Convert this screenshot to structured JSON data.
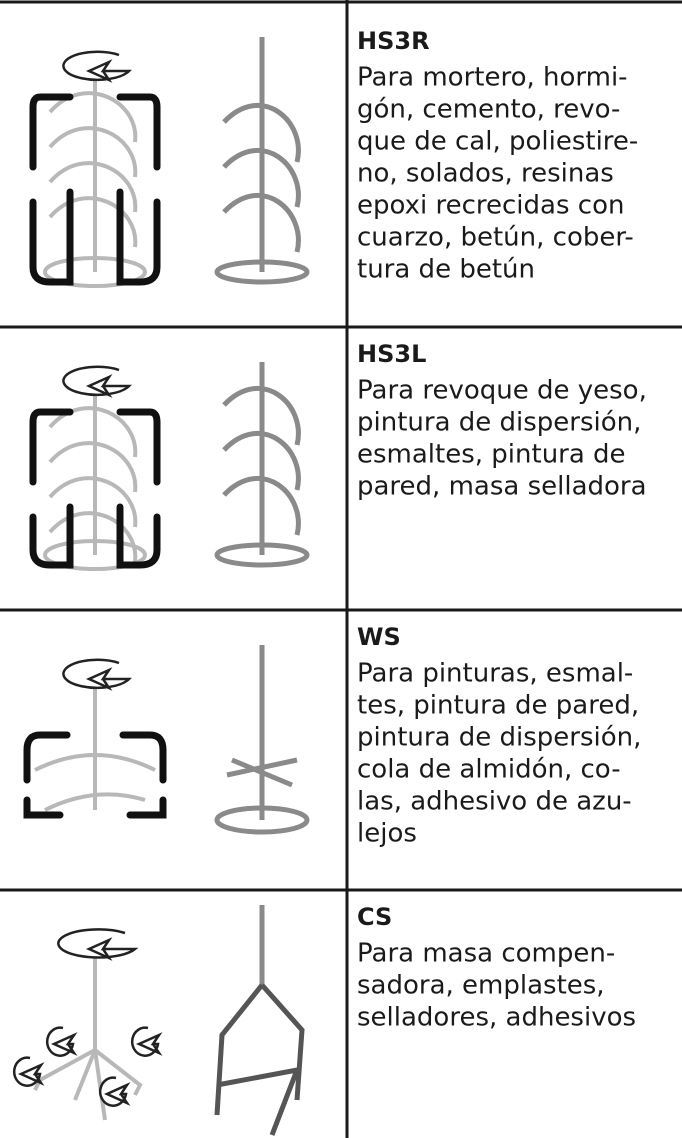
{
  "table": {
    "rows": [
      {
        "title": "HS3R",
        "lines": [
          "Para mortero, hormi-",
          "gón, cemento, revo-",
          "que de cal, poliestire-",
          "no, solados, resinas",
          "epoxi recrecidas con",
          "cuarzo, betún, cober-",
          "tura de betún"
        ]
      },
      {
        "title": "HS3L",
        "lines": [
          "Para revoque de yeso,",
          "pintura de dispersión,",
          "esmaltes, pintura de",
          "pared, masa selladora"
        ]
      },
      {
        "title": "WS",
        "lines": [
          "Para pinturas, esmal-",
          "tes, pintura de pared,",
          "pintura de dispersión,",
          "cola de almidón, co-",
          "las, adhesivo de azu-",
          "lejos"
        ]
      },
      {
        "title": "CS",
        "lines": [
          "Para masa compen-",
          "sadora, emplastes,",
          "selladores, adhesivos"
        ]
      }
    ]
  }
}
